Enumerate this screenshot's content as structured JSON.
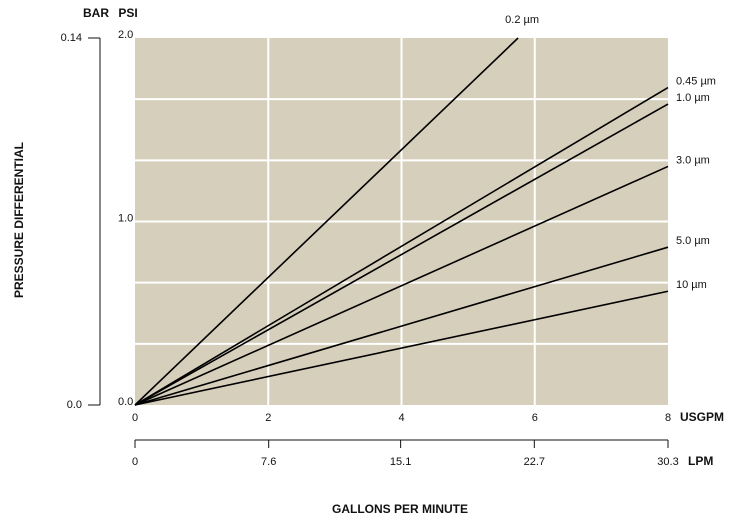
{
  "chart_data": {
    "type": "line",
    "y_axis_title": "PRESSURE DIFFERENTIAL",
    "x_axis_title": "GALLONS PER MINUTE",
    "y_unit": "PSI",
    "y2_unit": "BAR",
    "x_unit": "USGPM",
    "x2_unit": "LPM",
    "xlim": [
      0,
      8
    ],
    "xticks": [
      0,
      2,
      4,
      6,
      8
    ],
    "x2lim": [
      0,
      30.3
    ],
    "x2ticks": [
      0,
      7.6,
      15.1,
      22.7,
      30.3
    ],
    "ylim": [
      0,
      2.0
    ],
    "yticks": [
      {
        "value": 0,
        "label": "0.0"
      },
      {
        "value": 1,
        "label": "1.0"
      },
      {
        "value": 2,
        "label": "2.0"
      }
    ],
    "y2lim": [
      0,
      0.14
    ],
    "y2ticks": [
      {
        "value": 0,
        "label": "0.0"
      },
      0.14
    ],
    "ygrid": [
      0.333,
      0.667,
      1,
      1.333,
      1.667
    ],
    "xgrid": [
      2,
      4,
      6
    ],
    "grid": true,
    "background": "#d6cfbb",
    "series": [
      {
        "name": "0.2 µm",
        "color": "#000000",
        "x": [
          0,
          5.75
        ],
        "values": [
          0,
          2.0
        ]
      },
      {
        "name": "0.45 µm",
        "color": "#000000",
        "x": [
          0,
          8
        ],
        "values": [
          0,
          1.73
        ]
      },
      {
        "name": "1.0 µm",
        "color": "#000000",
        "x": [
          0,
          8
        ],
        "values": [
          0,
          1.64
        ]
      },
      {
        "name": "3.0 µm",
        "color": "#000000",
        "x": [
          0,
          8
        ],
        "values": [
          0,
          1.3
        ]
      },
      {
        "name": "5.0 µm",
        "color": "#000000",
        "x": [
          0,
          8
        ],
        "values": [
          0,
          0.86
        ]
      },
      {
        "name": "10 µm",
        "color": "#000000",
        "x": [
          0,
          8
        ],
        "values": [
          0,
          0.62
        ]
      }
    ]
  }
}
